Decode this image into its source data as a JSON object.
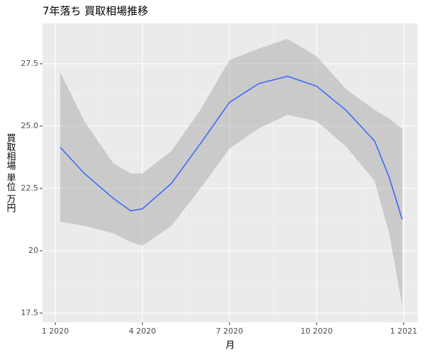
{
  "chart_data": {
    "type": "smooth",
    "title": "7年落ち 買取相場推移",
    "x_label": "月",
    "y_label": "買取相場 単位 万円",
    "x": [
      0.17,
      1,
      2,
      2.6,
      3,
      4,
      5,
      6,
      7,
      8,
      9,
      10,
      11,
      11.5,
      11.95
    ],
    "values": [
      24.15,
      23.1,
      22.1,
      21.6,
      21.68,
      22.7,
      24.3,
      25.95,
      26.7,
      27.0,
      26.6,
      25.65,
      24.4,
      22.95,
      21.25
    ],
    "lower": [
      21.16,
      21.0,
      20.7,
      20.35,
      20.2,
      21.0,
      22.5,
      24.1,
      24.9,
      25.45,
      25.2,
      24.2,
      22.8,
      20.7,
      17.8
    ],
    "upper": [
      27.16,
      25.2,
      23.5,
      23.1,
      23.1,
      24.0,
      25.65,
      27.65,
      28.1,
      28.5,
      27.8,
      26.5,
      25.65,
      25.3,
      24.9
    ],
    "color": "#3366ff",
    "band_color": "#999999",
    "xlim": [
      -0.44,
      12.49
    ],
    "ylim": [
      17.13,
      29.12
    ],
    "xticks": [
      {
        "value": 0,
        "label": "1 2020"
      },
      {
        "value": 3,
        "label": "4 2020"
      },
      {
        "value": 6,
        "label": "7 2020"
      },
      {
        "value": 9,
        "label": "10 2020"
      },
      {
        "value": 12,
        "label": "1 2021"
      }
    ],
    "yticks": [
      17.5,
      20.0,
      {
        "value": 22.5,
        "label": "22.5"
      },
      {
        "value": 25,
        "label": "25.0"
      },
      27.5
    ],
    "grid": true
  }
}
